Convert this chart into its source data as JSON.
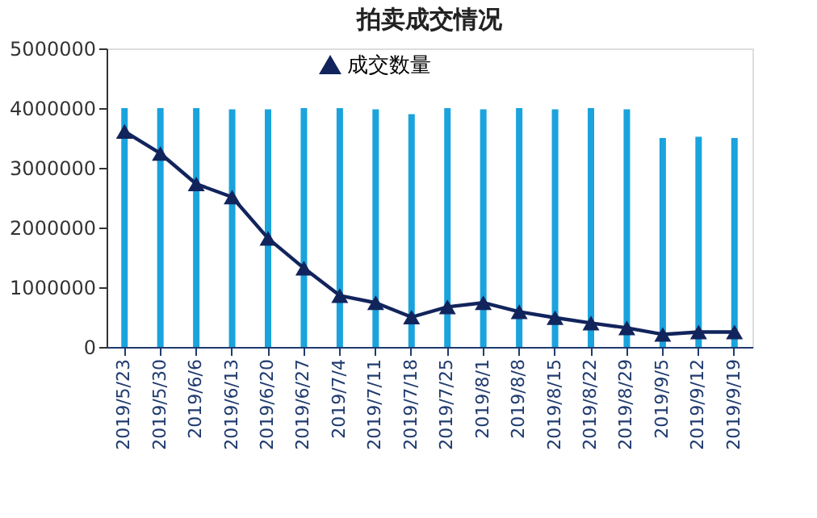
{
  "chart_data": {
    "type": "bar",
    "title": "拍卖成交情况",
    "categories": [
      "2019/5/23",
      "2019/5/30",
      "2019/6/6",
      "2019/6/13",
      "2019/6/20",
      "2019/6/27",
      "2019/7/4",
      "2019/7/11",
      "2019/7/18",
      "2019/7/25",
      "2019/8/1",
      "2019/8/8",
      "2019/8/15",
      "2019/8/22",
      "2019/8/29",
      "2019/9/5",
      "2019/9/12",
      "2019/9/19"
    ],
    "series": [
      {
        "color": "#1aa3dd",
        "values": [
          4000000,
          4000000,
          4000000,
          3980000,
          3980000,
          4000000,
          4000000,
          3980000,
          3900000,
          4000000,
          3980000,
          4000000,
          3980000,
          4000000,
          3980000,
          3500000,
          3520000,
          3500000
        ]
      },
      {
        "name": "成交数量",
        "type": "line",
        "color": "#12245c",
        "values": [
          3610000,
          3240000,
          2730000,
          2510000,
          1820000,
          1320000,
          860000,
          740000,
          500000,
          670000,
          740000,
          590000,
          490000,
          400000,
          320000,
          210000,
          250000,
          250000
        ]
      }
    ],
    "ylim": [
      0,
      5000000
    ],
    "yticks": [
      0,
      1000000,
      2000000,
      3000000,
      4000000,
      5000000
    ],
    "grid": false,
    "legend": "top",
    "marker": "triangle",
    "line_style": "solid"
  }
}
